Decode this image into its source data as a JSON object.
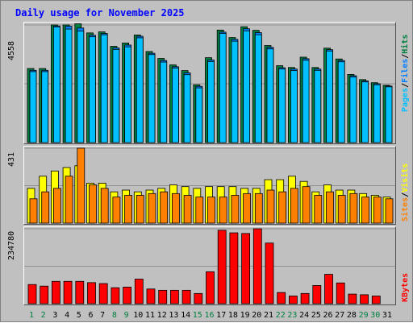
{
  "title": "Daily usage for November 2025",
  "colors": {
    "pages": "#00c0ff",
    "files": "#0080ff",
    "hits": "#008040",
    "visits": "#ffff00",
    "sites": "#ff8000",
    "kbytes": "#ff0000",
    "weekend": "#008040",
    "weekday": "#000000"
  },
  "legend": {
    "top": [
      "Pages",
      "Files",
      "Hits"
    ],
    "middle": [
      "Sites",
      "Visits"
    ],
    "bottom": [
      "KBytes"
    ]
  },
  "chart_data": [
    {
      "type": "bar",
      "title": "Daily usage for November 2025",
      "panel": "top",
      "y_max_label": "4558",
      "ylim": [
        0,
        4558
      ],
      "categories": [
        "1",
        "2",
        "3",
        "4",
        "5",
        "6",
        "7",
        "8",
        "9",
        "10",
        "11",
        "12",
        "13",
        "14",
        "15",
        "16",
        "17",
        "18",
        "19",
        "20",
        "21",
        "22",
        "23",
        "24",
        "25",
        "26",
        "27",
        "28",
        "29",
        "30",
        "31"
      ],
      "series": [
        {
          "name": "Hits",
          "values": [
            2870,
            2870,
            4560,
            4560,
            4600,
            4250,
            4290,
            3730,
            3860,
            4170,
            3530,
            3260,
            3010,
            2790,
            2240,
            3290,
            4360,
            4070,
            4490,
            4350,
            3760,
            2980,
            2910,
            3310,
            2910,
            3660,
            3240,
            2640,
            2440,
            2320,
            2220
          ]
        },
        {
          "name": "Files",
          "values": [
            2800,
            2800,
            4520,
            4510,
            4440,
            4160,
            4230,
            3670,
            3780,
            4120,
            3460,
            3180,
            2940,
            2700,
            2180,
            3200,
            4280,
            4000,
            4410,
            4260,
            3690,
            2900,
            2850,
            3250,
            2850,
            3600,
            3180,
            2590,
            2390,
            2280,
            2190
          ]
        },
        {
          "name": "Pages",
          "values": [
            2750,
            2750,
            4480,
            4400,
            4320,
            4100,
            4180,
            3610,
            3710,
            4060,
            3410,
            3120,
            2890,
            2630,
            2120,
            3140,
            4230,
            3930,
            4330,
            4180,
            3630,
            2850,
            2790,
            3190,
            2800,
            3550,
            3130,
            2540,
            2350,
            2240,
            2160
          ]
        }
      ]
    },
    {
      "type": "bar",
      "panel": "middle",
      "y_max_label": "431",
      "ylim": [
        0,
        431
      ],
      "categories": [
        "1",
        "2",
        "3",
        "4",
        "5",
        "6",
        "7",
        "8",
        "9",
        "10",
        "11",
        "12",
        "13",
        "14",
        "15",
        "16",
        "17",
        "18",
        "19",
        "20",
        "21",
        "22",
        "23",
        "24",
        "25",
        "26",
        "27",
        "28",
        "29",
        "30",
        "31"
      ],
      "series": [
        {
          "name": "Visits",
          "values": [
            200,
            270,
            300,
            320,
            330,
            230,
            230,
            180,
            190,
            180,
            190,
            200,
            220,
            210,
            200,
            210,
            210,
            210,
            200,
            200,
            250,
            250,
            270,
            240,
            180,
            220,
            190,
            190,
            170,
            160,
            150
          ]
        },
        {
          "name": "Sites",
          "values": [
            140,
            180,
            200,
            270,
            431,
            220,
            200,
            150,
            160,
            160,
            170,
            180,
            170,
            160,
            150,
            150,
            150,
            160,
            170,
            170,
            190,
            180,
            200,
            210,
            160,
            180,
            160,
            170,
            150,
            150,
            140
          ]
        }
      ]
    },
    {
      "type": "bar",
      "panel": "bottom",
      "y_max_label": "234780",
      "ylim": [
        0,
        234780
      ],
      "categories": [
        "1",
        "2",
        "3",
        "4",
        "5",
        "6",
        "7",
        "8",
        "9",
        "10",
        "11",
        "12",
        "13",
        "14",
        "15",
        "16",
        "17",
        "18",
        "19",
        "20",
        "21",
        "22",
        "23",
        "24",
        "25",
        "26",
        "27",
        "28",
        "29",
        "30",
        "31"
      ],
      "series": [
        {
          "name": "KBytes",
          "values": [
            60000,
            55000,
            70000,
            70000,
            70000,
            66000,
            63000,
            50000,
            52000,
            77000,
            46000,
            42000,
            42000,
            42000,
            32000,
            100000,
            230000,
            222000,
            220000,
            234780,
            190000,
            35000,
            24000,
            32000,
            57000,
            92000,
            65000,
            30000,
            28000,
            24000,
            0
          ]
        }
      ]
    }
  ],
  "weekend_days": [
    1,
    2,
    8,
    9,
    15,
    16,
    22,
    23,
    29,
    30
  ]
}
